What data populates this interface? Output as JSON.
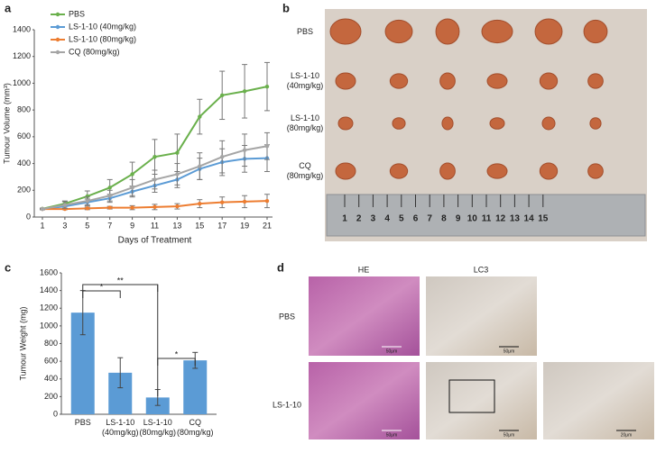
{
  "chart_data": [
    {
      "type": "line",
      "panel": "a",
      "ylabel": "Tumour Volume (mm³)",
      "xlabel": "Days of Treatment",
      "x": [
        1,
        3,
        5,
        7,
        9,
        11,
        13,
        15,
        17,
        19,
        21
      ],
      "xlim": [
        1,
        21
      ],
      "xticks": [
        1,
        3,
        5,
        7,
        9,
        11,
        13,
        15,
        17,
        19,
        21
      ],
      "ylim": [
        0,
        1400
      ],
      "yticks": [
        0,
        200,
        400,
        600,
        800,
        1000,
        1200,
        1400
      ],
      "grid": false,
      "legend": "upper left",
      "series": [
        {
          "name": "PBS",
          "color": "#6ab04c",
          "values": [
            62,
            100,
            155,
            220,
            320,
            450,
            480,
            750,
            910,
            940,
            975
          ],
          "errors": [
            5,
            20,
            40,
            60,
            90,
            130,
            140,
            130,
            180,
            200,
            180
          ]
        },
        {
          "name": "LS-1-10 (40mg/kg)",
          "color": "#5b9bd5",
          "values": [
            60,
            80,
            110,
            140,
            190,
            235,
            280,
            360,
            410,
            435,
            440
          ],
          "errors": [
            5,
            15,
            25,
            30,
            40,
            50,
            60,
            80,
            100,
            100,
            100
          ]
        },
        {
          "name": "LS-1-10 (80mg/kg)",
          "color": "#ed7d31",
          "values": [
            60,
            60,
            65,
            70,
            70,
            75,
            80,
            100,
            110,
            115,
            120
          ],
          "errors": [
            3,
            5,
            10,
            10,
            15,
            20,
            20,
            30,
            40,
            45,
            50
          ]
        },
        {
          "name": "CQ (80mg/kg)",
          "color": "#a5a5a5",
          "values": [
            60,
            90,
            120,
            160,
            220,
            280,
            320,
            380,
            450,
            500,
            530
          ],
          "errors": [
            5,
            25,
            30,
            40,
            60,
            70,
            80,
            100,
            120,
            120,
            100
          ]
        }
      ]
    },
    {
      "type": "bar",
      "panel": "c",
      "ylabel": "Tumour Weight (mg)",
      "categories": [
        "PBS",
        "LS-1-10 (40mg/kg)",
        "LS-1-10 (80mg/kg)",
        "CQ (80mg/kg)"
      ],
      "values": [
        1150,
        470,
        190,
        610
      ],
      "errors": [
        250,
        170,
        90,
        90
      ],
      "color": "#5b9bd5",
      "ylim": [
        0,
        1600
      ],
      "yticks": [
        0,
        200,
        400,
        600,
        800,
        1000,
        1200,
        1400,
        1600
      ],
      "grid": false,
      "annotations": [
        "*",
        "**",
        "*"
      ]
    }
  ],
  "panel_b": {
    "label": "b",
    "rows": [
      "PBS",
      "LS-1-10 (40mg/kg)",
      "LS-1-10 (80mg/kg)",
      "CQ (80mg/kg)"
    ],
    "ruler": [
      "1",
      "2",
      "3",
      "4",
      "5",
      "6",
      "7",
      "8",
      "9",
      "10",
      "11",
      "12",
      "13",
      "14",
      "15"
    ]
  },
  "panel_d": {
    "label": "d",
    "columns": [
      "HE",
      "LC3"
    ],
    "rows": [
      "PBS",
      "LS-1-10"
    ],
    "scale_bars": [
      "50μm",
      "50μm",
      "50μm",
      "50μm",
      "20μm"
    ]
  }
}
